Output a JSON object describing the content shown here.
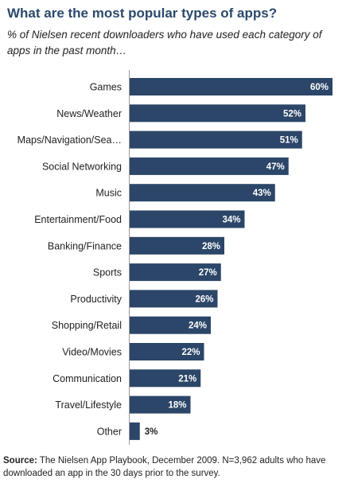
{
  "header": {
    "title": "What are the most popular types of apps?",
    "subtitle": "% of Nielsen recent downloaders who have used each category of apps in the past month…"
  },
  "footer": {
    "source_label": "Source:",
    "source_text": "The Nielsen App Playbook, December 2009. N=3,962 adults who have downloaded an app in the 30 days prior to the survey."
  },
  "colors": {
    "bar": "#2b4668",
    "label_inside": "#ffffff",
    "label_outside": "#222222",
    "title": "#2a4a6b"
  },
  "chart_data": {
    "type": "bar",
    "orientation": "horizontal",
    "categories": [
      "Games",
      "News/Weather",
      "Maps/Navigation/Sea…",
      "Social Networking",
      "Music",
      "Entertainment/Food",
      "Banking/Finance",
      "Sports",
      "Productivity",
      "Shopping/Retail",
      "Video/Movies",
      "Communication",
      "Travel/Lifestyle",
      "Other"
    ],
    "values": [
      60,
      52,
      51,
      47,
      43,
      34,
      28,
      27,
      26,
      24,
      22,
      21,
      18,
      3
    ],
    "data_labels": [
      "60%",
      "52%",
      "51%",
      "47%",
      "43%",
      "34%",
      "28%",
      "27%",
      "26%",
      "24%",
      "22%",
      "21%",
      "18%",
      "3%"
    ],
    "title": "",
    "xlabel": "",
    "ylabel": "",
    "xlim": [
      0,
      60
    ],
    "grid": false,
    "legend": "none"
  }
}
